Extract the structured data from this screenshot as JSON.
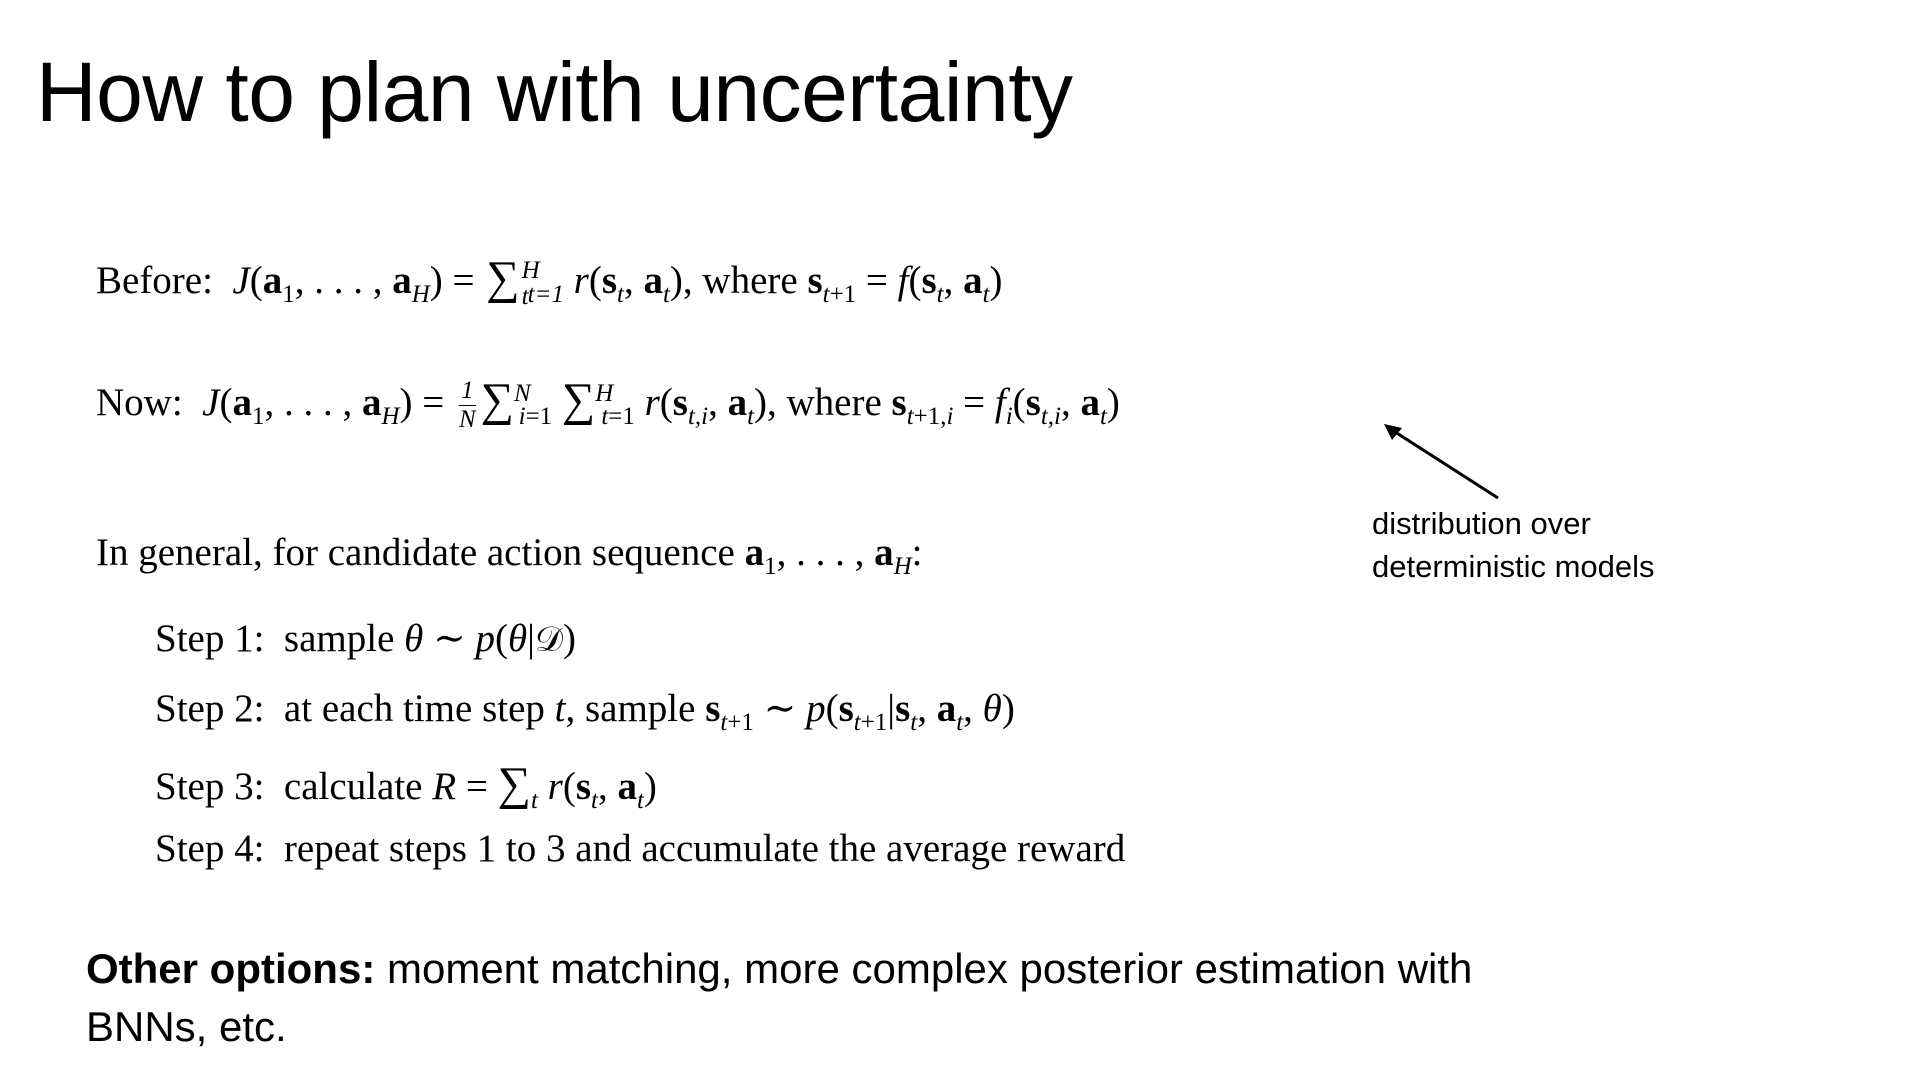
{
  "title": "How to plan with uncertainty",
  "equations": {
    "before_label": "Before:",
    "now_label": "Now:",
    "where": "where",
    "general_label": "In general, for candidate action sequence"
  },
  "steps": [
    {
      "label": "Step 1:",
      "text": "sample"
    },
    {
      "label": "Step 2:",
      "text": "at each time step"
    },
    {
      "label": "Step 3:",
      "text": "calculate"
    },
    {
      "label": "Step 4:",
      "text": "repeat steps 1 to 3 and accumulate the average reward"
    }
  ],
  "step2_sample": "sample",
  "annotation": {
    "line1": "distribution over",
    "line2": "deterministic models"
  },
  "other_options": {
    "label": "Other options:",
    "text": "moment matching, more complex posterior estimation with BNNs, etc."
  }
}
